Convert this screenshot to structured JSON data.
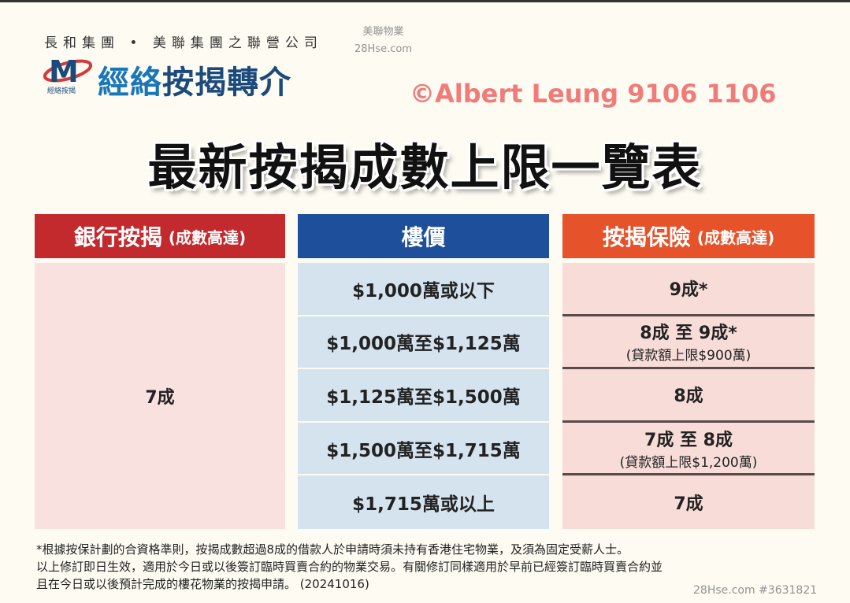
{
  "header": {
    "company": "長和集團 • 美聯集團之聯營公司",
    "logo_text": "經絡按揭 專人跟進",
    "brand_highlight": "經絡",
    "brand_rest": "按揭轉介",
    "title": "最新按揭成數上限一覽表"
  },
  "table": {
    "bank": {
      "label": "銀行按揭",
      "note": "(成數高達)",
      "value": "7成"
    },
    "price": {
      "label": "樓價",
      "rows": [
        "$1,000萬或以下",
        "$1,000萬至$1,125萬",
        "$1,125萬至$1,500萬",
        "$1,500萬至$1,715萬",
        "$1,715萬或以上"
      ]
    },
    "insurance": {
      "label": "按揭保險",
      "note": "(成數高達)",
      "rows": [
        {
          "value": "9成*",
          "sub": ""
        },
        {
          "value": "8成 至 9成*",
          "sub": "(貸款額上限$900萬)"
        },
        {
          "value": "8成",
          "sub": ""
        },
        {
          "value": "7成 至 8成",
          "sub": "(貸款額上限$1,200萬)"
        },
        {
          "value": "7成",
          "sub": ""
        }
      ]
    }
  },
  "notes": [
    "*根據按保計劃的合資格準則，按揭成數超過8成的借款人於申請時須未持有香港住宅物業，及須為固定受薪人士。",
    "以上修訂即日生效，適用於今日或以後簽訂臨時買賣合約的物業交易。有關修訂同樣適用於早前已經簽訂臨時買賣合約並",
    "且在今日或以後預計完成的樓花物業的按揭申請。 (20241016)"
  ],
  "watermarks": {
    "main": "©Albert Leung 9106 1106",
    "center_1": "美聯物業",
    "center_2": "28Hse.com",
    "corner": "28Hse.com #3631821"
  },
  "colors": {
    "bank_header": "#c22a2e",
    "price_header": "#1d4f9a",
    "insurance_header": "#e6532b",
    "brand": "#1b4a7c"
  }
}
